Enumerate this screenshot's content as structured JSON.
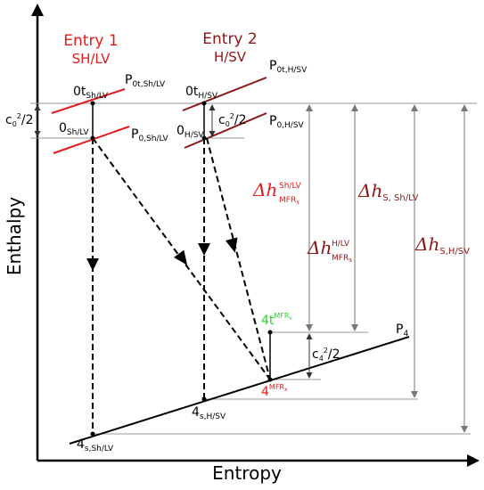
{
  "axes": {
    "x_label": "Entropy",
    "y_label": "Enthalpy"
  },
  "entries": [
    {
      "title": "Entry 1",
      "sub": "SH/LV"
    },
    {
      "title": "Entry 2",
      "sub": "H/SV"
    }
  ],
  "isobars": {
    "p0t_sh": {
      "base": "P",
      "sub": "0t,Sh/LV"
    },
    "p0_sh": {
      "base": "P",
      "sub": "0,Sh/LV"
    },
    "p0t_h": {
      "base": "P",
      "sub": "0t,H/SV"
    },
    "p0_h": {
      "base": "P",
      "sub": "0,H/SV"
    },
    "p4": {
      "base": "P",
      "sub": "4"
    }
  },
  "points": {
    "t0_sh": {
      "base": "0t",
      "sub": "Sh/LV"
    },
    "s0_sh": {
      "base": "0",
      "sub": "Sh/LV"
    },
    "t0_h": {
      "base": "0t",
      "sub": "H/SV"
    },
    "s0_h": {
      "base": "0",
      "sub": "H/SV"
    },
    "s4_h": {
      "base": "4",
      "sub": "s,H/SV"
    },
    "s4_sh": {
      "base": "4",
      "sub": "s,Sh/LV"
    },
    "p4_mfr": {
      "base": "4",
      "sup": "MFR",
      "supsub": "x"
    },
    "t4_mfr": {
      "base": "4t",
      "sup": "MFR",
      "supsub": "x"
    }
  },
  "velocity_heads": {
    "c0_left": {
      "base": "c",
      "sub": "0",
      "sup": "2",
      "tail": "/2"
    },
    "c0_right": {
      "base": "c",
      "sub": "0",
      "sup": "2",
      "tail": "/2"
    },
    "c4": {
      "base": "c",
      "sub": "4",
      "sup": "2",
      "tail": "/2"
    }
  },
  "deltas": {
    "mfr_sh": {
      "base": "Δh",
      "sub": "MFR",
      "subsub": "x",
      "sup": "Sh/LV"
    },
    "mfr_h": {
      "base": "Δh",
      "sub": "MFR",
      "subsub": "x",
      "sup": "H/LV"
    },
    "s_sh": {
      "base": "Δh",
      "sub": "S, Sh/LV"
    },
    "s_h": {
      "base": "Δh",
      "sub": "S,H/SV"
    }
  },
  "colors": {
    "entry1": "#e31b1b",
    "entry2": "#8b1616",
    "mfr_total": "#2fd02f",
    "grid": "#9a9a9a"
  }
}
